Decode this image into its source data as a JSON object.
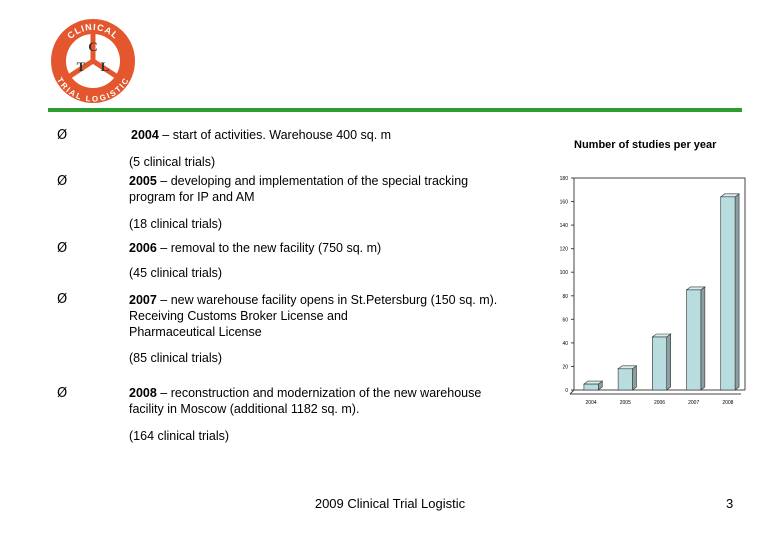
{
  "logo": {
    "ring_text_top": "CLINICAL",
    "ring_text_bottom": "TRIAL LOGISTIC",
    "letters": [
      "C",
      "T",
      "L"
    ],
    "color": "#e4572e"
  },
  "accent_color": "#2e9e2e",
  "bullet_glyph": "Ø",
  "timeline": [
    {
      "year": "2004",
      "lines": [
        " – start of activities. Warehouse 400 sq. m"
      ],
      "note": "(5 clinical trials)"
    },
    {
      "year": "2005",
      "lines": [
        " – developing and implementation of the special tracking",
        "program for IP and AM"
      ],
      "note": "(18 clinical trials)"
    },
    {
      "year": "2006",
      "lines": [
        " – removal to the new facility (750 sq. m)"
      ],
      "note": "(45 clinical trials)"
    },
    {
      "year": "2007",
      "lines": [
        " – new warehouse facility opens in St.Petersburg (150 sq. m).",
        " Receiving Customs Broker License and",
        " Pharmaceutical License"
      ],
      "note": " (85 clinical trials)"
    },
    {
      "year": "2008",
      "lines": [
        " – reconstruction and modernization of the new warehouse",
        "facility in Moscow (additional 1182 sq. m)."
      ],
      "note": "(164 clinical trials)"
    }
  ],
  "footer": "2009 Clinical Trial Logistic",
  "page_number": "3",
  "chart_data": {
    "type": "bar",
    "title": "Number of studies per year",
    "categories": [
      "2004",
      "2005",
      "2006",
      "2007",
      "2008"
    ],
    "values": [
      5,
      18,
      45,
      85,
      164
    ],
    "yticks": [
      "0",
      "20",
      "40",
      "60",
      "80",
      "100",
      "120",
      "140",
      "160",
      "180"
    ],
    "ylim": [
      0,
      180
    ],
    "grid": false,
    "bar_color": "#b9dcdf"
  }
}
